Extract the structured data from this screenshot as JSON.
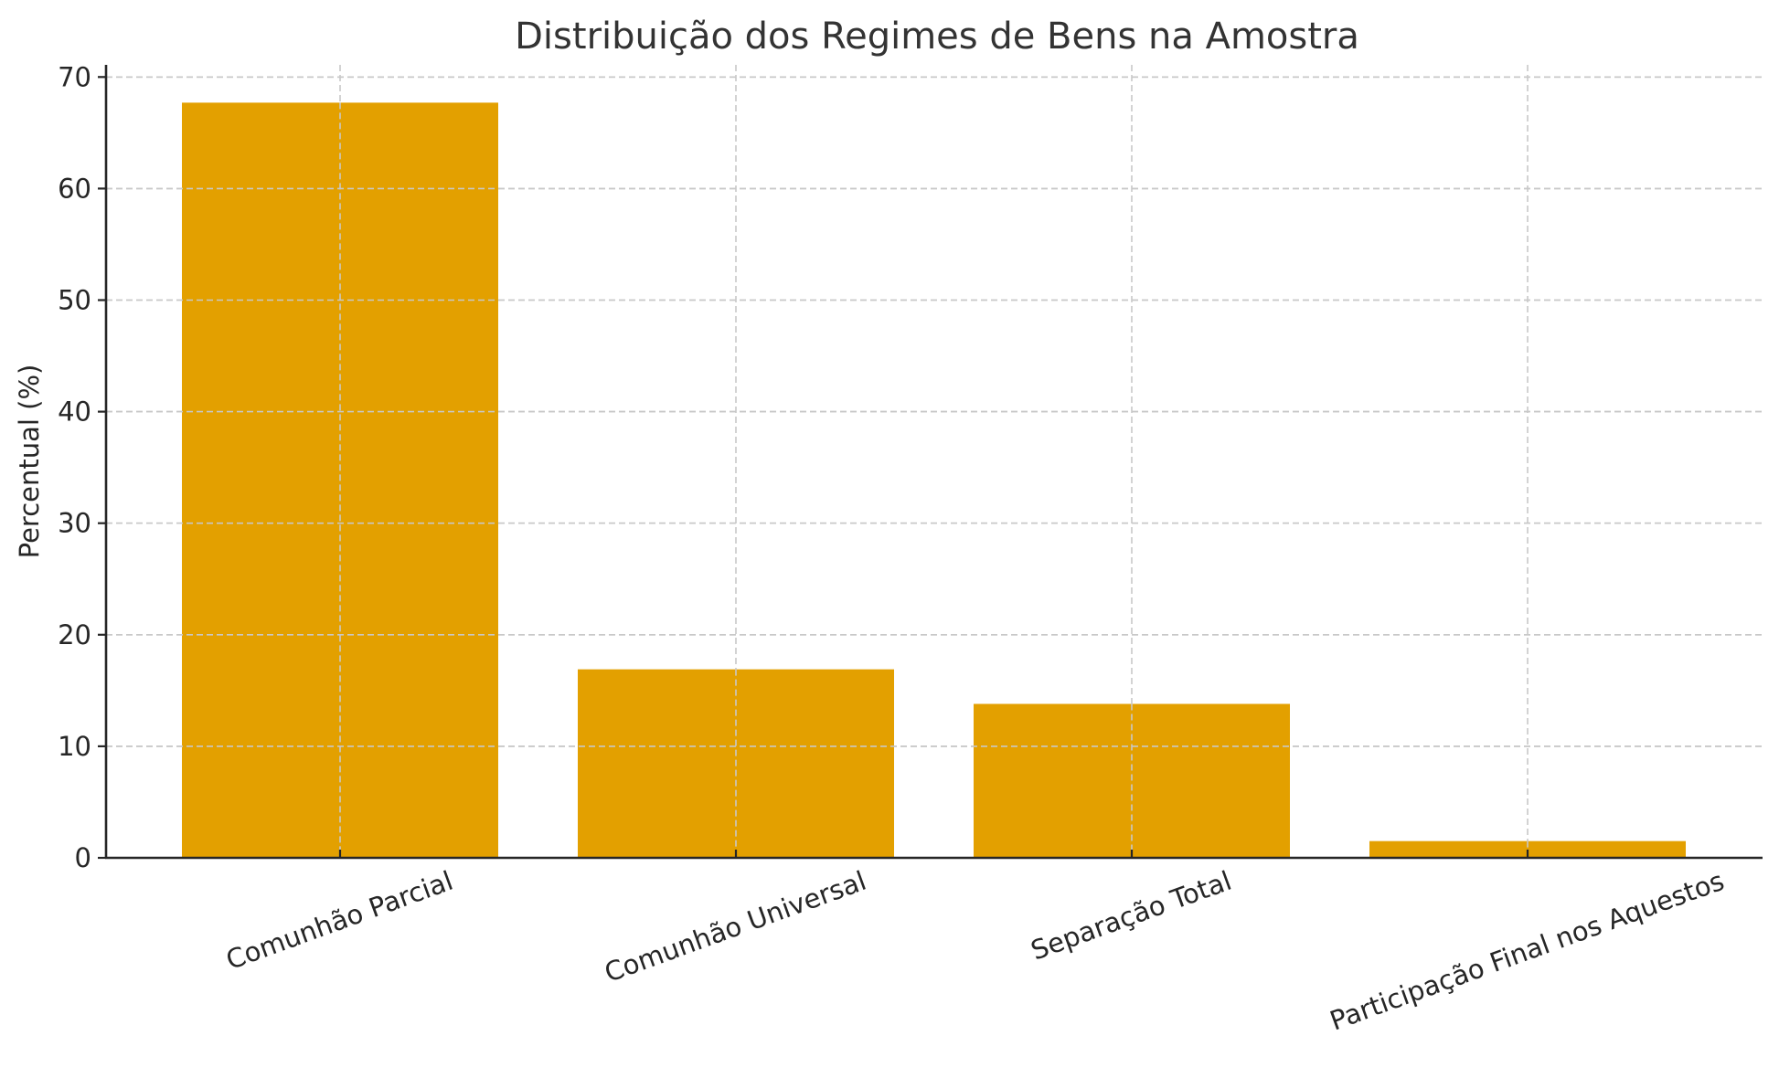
{
  "chart_data": {
    "type": "bar",
    "title": "Distribuição dos Regimes de Bens na Amostra",
    "xlabel": "",
    "ylabel": "Percentual (%)",
    "categories": [
      "Comunhão Parcial",
      "Comunhão Universal",
      "Separação Total",
      "Participação Final nos Aquestos"
    ],
    "values": [
      67.7,
      16.9,
      13.8,
      1.5
    ],
    "ylim": [
      0,
      71
    ],
    "yticks": [
      0,
      10,
      20,
      30,
      40,
      50,
      60,
      70
    ],
    "grid": true,
    "grid_style": "dashed",
    "xtick_rotation": 20,
    "legend": null,
    "bar_color": "#E3A000"
  },
  "colors": {
    "bar": "#E3A000",
    "text": "#262626",
    "title": "#333333",
    "grid": "#c8c8c8"
  }
}
